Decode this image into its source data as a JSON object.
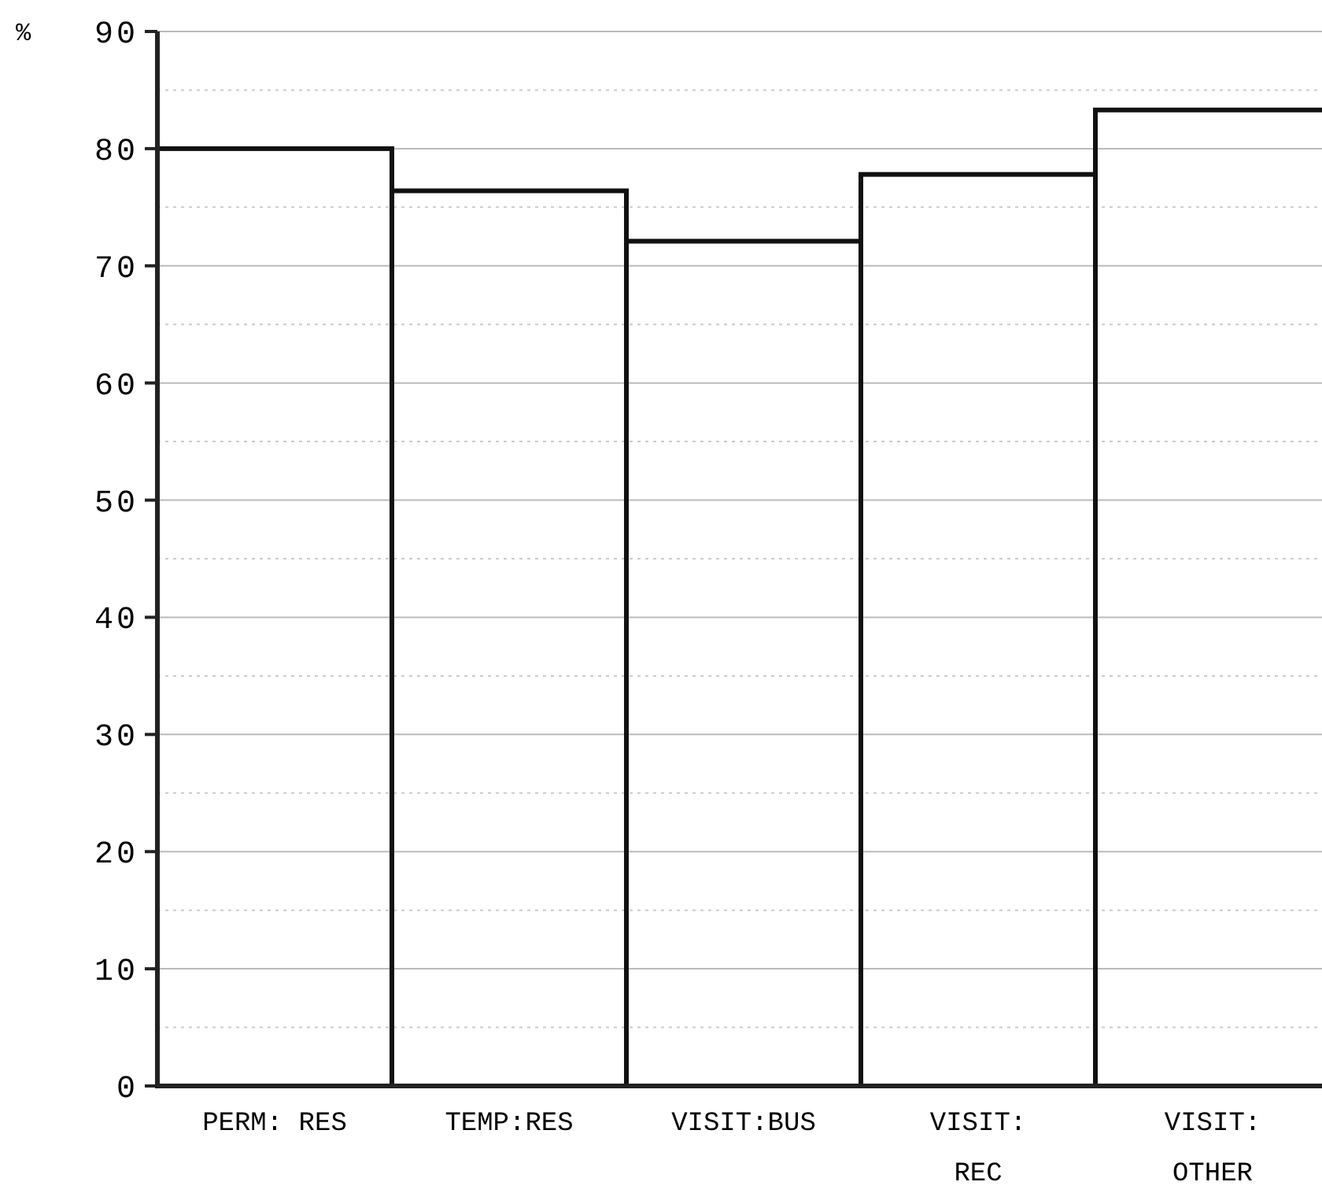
{
  "chart_data": {
    "type": "bar",
    "ylabel": "%",
    "categories": [
      "PERM: RES",
      "TEMP:RES",
      "VISIT:BUS",
      "VISIT:\nREC",
      "VISIT:\nOTHER"
    ],
    "values": [
      80.0,
      76.4,
      72.1,
      77.8,
      83.3
    ],
    "color": "#111111",
    "ylim": [
      0,
      90
    ],
    "yticks": [
      0,
      10,
      20,
      30,
      40,
      50,
      60,
      70,
      80,
      90
    ],
    "grid": "y"
  }
}
